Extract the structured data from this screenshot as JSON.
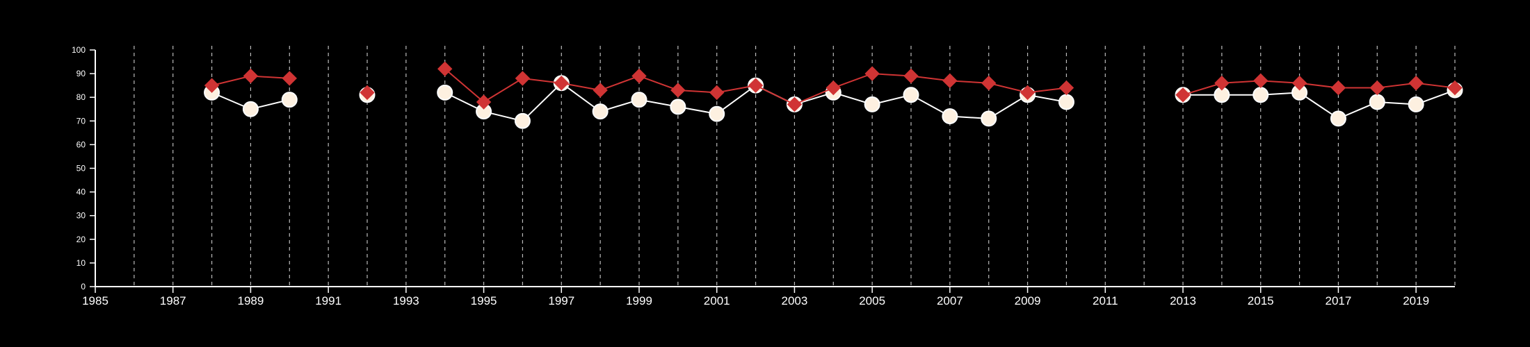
{
  "chart_data": {
    "type": "line",
    "title": "",
    "xlabel": "",
    "ylabel": "",
    "xlim": [
      1985,
      2020
    ],
    "ylim": [
      0,
      100
    ],
    "x_ticks": [
      1985,
      1987,
      1989,
      1991,
      1993,
      1995,
      1997,
      1999,
      2001,
      2003,
      2005,
      2007,
      2009,
      2011,
      2013,
      2015,
      2017,
      2019
    ],
    "y_ticks": [
      0,
      10,
      20,
      30,
      40,
      50,
      60,
      70,
      80,
      90,
      100
    ],
    "grid": "vertical dashed lines at every year",
    "legend": "none",
    "series": [
      {
        "color": "#fdf0e0",
        "stroke": "#ffffff",
        "marker": "circle",
        "points": [
          {
            "x": 1988,
            "y": 82
          },
          {
            "x": 1989,
            "y": 75
          },
          {
            "x": 1990,
            "y": 79
          },
          {
            "x": 1992,
            "y": 81
          },
          {
            "x": 1994,
            "y": 82
          },
          {
            "x": 1995,
            "y": 74
          },
          {
            "x": 1996,
            "y": 70
          },
          {
            "x": 1997,
            "y": 86
          },
          {
            "x": 1998,
            "y": 74
          },
          {
            "x": 1999,
            "y": 79
          },
          {
            "x": 2000,
            "y": 76
          },
          {
            "x": 2001,
            "y": 73
          },
          {
            "x": 2002,
            "y": 85
          },
          {
            "x": 2003,
            "y": 77
          },
          {
            "x": 2004,
            "y": 82
          },
          {
            "x": 2005,
            "y": 77
          },
          {
            "x": 2006,
            "y": 81
          },
          {
            "x": 2007,
            "y": 72
          },
          {
            "x": 2008,
            "y": 71
          },
          {
            "x": 2009,
            "y": 81
          },
          {
            "x": 2010,
            "y": 78
          },
          {
            "x": 2013,
            "y": 81
          },
          {
            "x": 2014,
            "y": 81
          },
          {
            "x": 2015,
            "y": 81
          },
          {
            "x": 2016,
            "y": 82
          },
          {
            "x": 2017,
            "y": 71
          },
          {
            "x": 2018,
            "y": 78
          },
          {
            "x": 2019,
            "y": 77
          },
          {
            "x": 2020,
            "y": 83
          }
        ]
      },
      {
        "color": "#d03434",
        "stroke": "#d03434",
        "marker": "diamond",
        "points": [
          {
            "x": 1988,
            "y": 85
          },
          {
            "x": 1989,
            "y": 89
          },
          {
            "x": 1990,
            "y": 88
          },
          {
            "x": 1992,
            "y": 82
          },
          {
            "x": 1994,
            "y": 92
          },
          {
            "x": 1995,
            "y": 78
          },
          {
            "x": 1996,
            "y": 88
          },
          {
            "x": 1997,
            "y": 86
          },
          {
            "x": 1998,
            "y": 83
          },
          {
            "x": 1999,
            "y": 89
          },
          {
            "x": 2000,
            "y": 83
          },
          {
            "x": 2001,
            "y": 82
          },
          {
            "x": 2002,
            "y": 85
          },
          {
            "x": 2003,
            "y": 77
          },
          {
            "x": 2004,
            "y": 84
          },
          {
            "x": 2005,
            "y": 90
          },
          {
            "x": 2006,
            "y": 89
          },
          {
            "x": 2007,
            "y": 87
          },
          {
            "x": 2008,
            "y": 86
          },
          {
            "x": 2009,
            "y": 82
          },
          {
            "x": 2010,
            "y": 84
          },
          {
            "x": 2013,
            "y": 81
          },
          {
            "x": 2014,
            "y": 86
          },
          {
            "x": 2015,
            "y": 87
          },
          {
            "x": 2016,
            "y": 86
          },
          {
            "x": 2017,
            "y": 84
          },
          {
            "x": 2018,
            "y": 84
          },
          {
            "x": 2019,
            "y": 86
          },
          {
            "x": 2020,
            "y": 84
          }
        ]
      }
    ]
  }
}
